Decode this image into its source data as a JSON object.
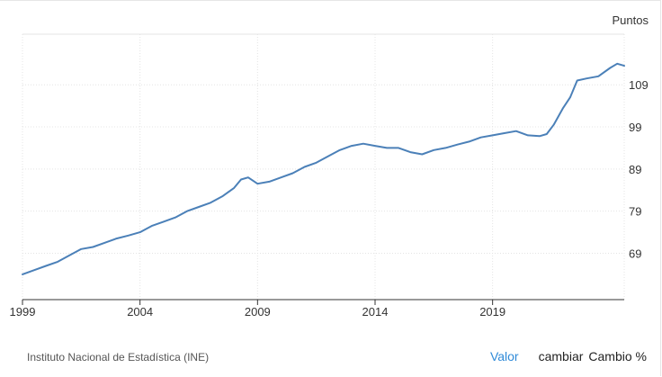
{
  "unit_label": "Puntos",
  "source": "Instituto Nacional de Estadística (INE)",
  "controls": {
    "value": "Valor",
    "change": "cambiar",
    "change_pct": "Cambio %"
  },
  "colors": {
    "line": "#4b80b8",
    "grid": "#e4e4e4",
    "axis": "#333333",
    "active": "#2f8ad8"
  },
  "chart_data": {
    "type": "line",
    "title": "",
    "xlabel": "",
    "ylabel": "Puntos",
    "x_ticks": [
      "1999",
      "2004",
      "2009",
      "2014",
      "2019"
    ],
    "y_ticks": [
      69,
      79,
      89,
      99,
      109
    ],
    "xlim": [
      1999.0,
      2024.6
    ],
    "ylim": [
      58,
      121
    ],
    "grid": true,
    "y_axis_side": "right",
    "series": [
      {
        "x": [
          1999.0,
          1999.5,
          2000.0,
          2000.5,
          2001.0,
          2001.5,
          2002.0,
          2002.5,
          2003.0,
          2003.5,
          2004.0,
          2004.5,
          2005.0,
          2005.5,
          2006.0,
          2006.5,
          2007.0,
          2007.5,
          2008.0,
          2008.3,
          2008.6,
          2009.0,
          2009.5,
          2010.0,
          2010.5,
          2011.0,
          2011.5,
          2012.0,
          2012.5,
          2013.0,
          2013.5,
          2014.0,
          2014.5,
          2015.0,
          2015.5,
          2016.0,
          2016.5,
          2017.0,
          2017.5,
          2018.0,
          2018.5,
          2019.0,
          2019.5,
          2020.0,
          2020.5,
          2021.0,
          2021.3,
          2021.6,
          2022.0,
          2022.3,
          2022.6,
          2023.0,
          2023.5,
          2024.0,
          2024.3,
          2024.6
        ],
        "values": [
          64,
          65,
          66,
          67,
          68.5,
          70,
          70.5,
          71.5,
          72.5,
          73.2,
          74,
          75.5,
          76.5,
          77.5,
          79,
          80,
          81,
          82.5,
          84.5,
          86.5,
          87,
          85.5,
          86,
          87,
          88,
          89.5,
          90.5,
          92,
          93.5,
          94.5,
          95,
          94.5,
          94,
          94,
          93,
          92.5,
          93.5,
          94,
          94.8,
          95.5,
          96.5,
          97,
          97.5,
          98,
          97,
          96.8,
          97.3,
          99.5,
          103.5,
          106,
          110,
          110.5,
          111,
          113,
          114,
          113.5
        ]
      }
    ]
  }
}
